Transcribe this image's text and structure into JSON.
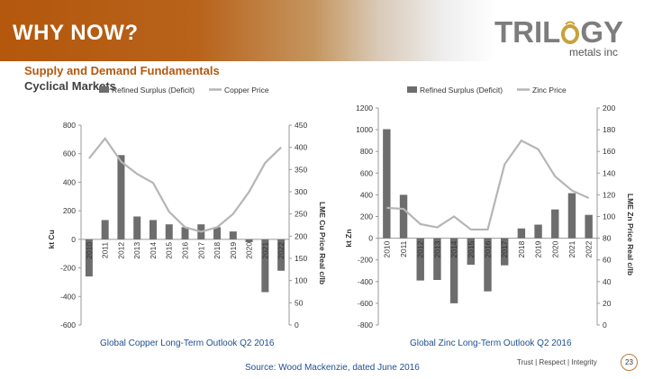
{
  "header": {
    "title": "WHY NOW?",
    "logo_text_pre": "TRIL",
    "logo_text_post": "GY",
    "logo_sub": "metals inc",
    "subtitle": "Supply and Demand Fundamentals",
    "subtitle2": "Cyclical Markets"
  },
  "colors": {
    "bar": "#6d6d6d",
    "line": "#b5b5b5",
    "accent": "#b3580d",
    "caption": "#1f4f8f"
  },
  "footer": {
    "source": "Source: Wood Mackenzie, dated June 2016",
    "tagline": "Trust  |  Respect  |  Integrity",
    "page_number": "23"
  },
  "chart_data": [
    {
      "type": "bar",
      "caption": "Global Copper Long-Term Outlook Q2 2016",
      "legend": [
        "Refined Surplus (Deficit)",
        "Copper Price"
      ],
      "legend_position": "top",
      "categories": [
        "2010",
        "2011",
        "2012",
        "2013",
        "2014",
        "2015",
        "2016",
        "2017",
        "2018",
        "2019",
        "2020",
        "2021",
        "2022"
      ],
      "series": [
        {
          "name": "Refined Surplus (Deficit)",
          "kind": "bar",
          "axis": "left",
          "values": [
            -260,
            135,
            590,
            160,
            135,
            105,
            85,
            105,
            85,
            55,
            -20,
            -370,
            -220
          ]
        },
        {
          "name": "Copper Price",
          "kind": "line",
          "axis": "right",
          "values": [
            375,
            420,
            368,
            340,
            320,
            255,
            220,
            210,
            220,
            250,
            300,
            365,
            400
          ]
        }
      ],
      "ylabel": "kt Cu",
      "y2label": "LME Cu Price Real c/lb",
      "ylim": [
        -600,
        800
      ],
      "yticks": [
        -600,
        -400,
        -200,
        0,
        200,
        400,
        600,
        800
      ],
      "y2lim": [
        0,
        450
      ],
      "y2ticks": [
        0,
        50,
        100,
        150,
        200,
        250,
        300,
        350,
        400,
        450
      ],
      "grid": false
    },
    {
      "type": "bar",
      "caption": "Global Zinc Long-Term Outlook Q2 2016",
      "legend": [
        "Refined Surplus (Deficit)",
        "Zinc Price"
      ],
      "legend_position": "top",
      "categories": [
        "2010",
        "2011",
        "2012",
        "2013",
        "2014",
        "2015",
        "2016",
        "2017",
        "2018",
        "2019",
        "2020",
        "2021",
        "2022"
      ],
      "series": [
        {
          "name": "Refined Surplus (Deficit)",
          "kind": "bar",
          "axis": "left",
          "values": [
            1005,
            400,
            -390,
            -385,
            -600,
            -245,
            -490,
            -250,
            90,
            125,
            265,
            415,
            215
          ]
        },
        {
          "name": "Zinc Price",
          "kind": "line",
          "axis": "right",
          "values": [
            108,
            107,
            93,
            90,
            100,
            88,
            88,
            148,
            170,
            162,
            137,
            124,
            117
          ]
        }
      ],
      "ylabel": "kt Zn",
      "y2label": "LME Zn Price Real c/lb",
      "ylim": [
        -800,
        1200
      ],
      "yticks": [
        -800,
        -600,
        -400,
        -200,
        0,
        200,
        400,
        600,
        800,
        1000,
        1200
      ],
      "y2lim": [
        0,
        200
      ],
      "y2ticks": [
        0,
        20,
        40,
        60,
        80,
        100,
        120,
        140,
        160,
        180,
        200
      ],
      "grid": false
    }
  ]
}
